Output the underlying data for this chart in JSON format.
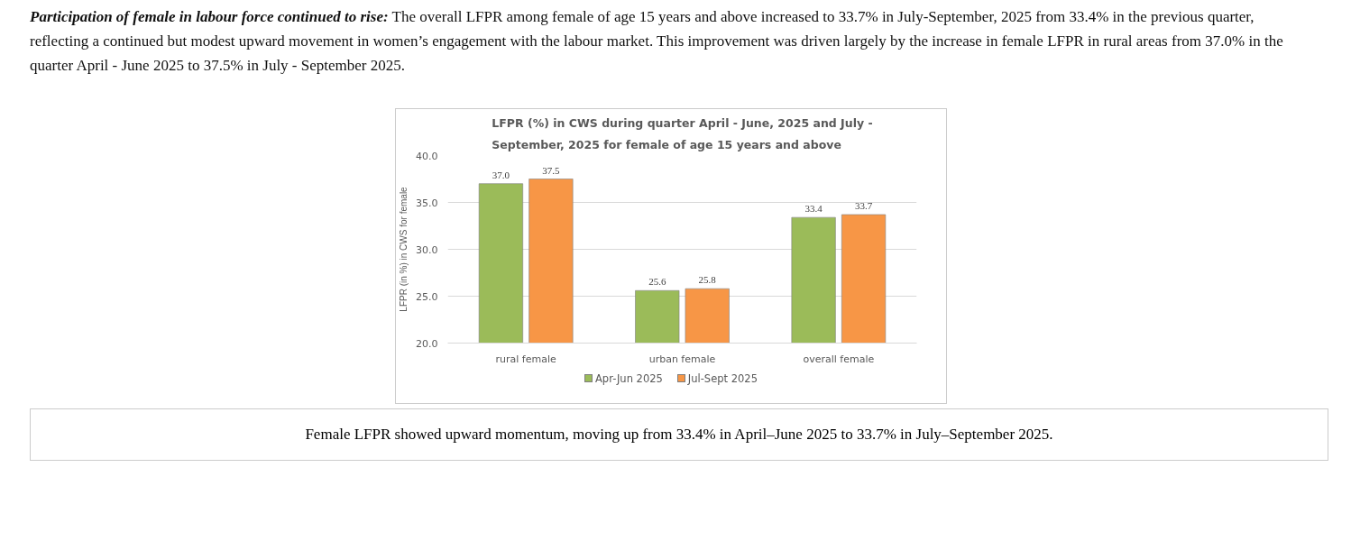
{
  "chart_data": {
    "type": "bar",
    "title": "LFPR (%) in CWS during quarter April - June, 2025 and July - September, 2025 for female of age 15 years and above",
    "ylabel": "LFPR (in %) in CWS for female",
    "categories": [
      "rural female",
      "urban female",
      "overall female"
    ],
    "series": [
      {
        "name": "Apr-Jun 2025",
        "color": "#9bbb59",
        "values": [
          37.0,
          25.6,
          33.4
        ],
        "value_labels": [
          "37.0",
          "25.6",
          "33.4"
        ]
      },
      {
        "name": "Jul-Sept 2025",
        "color": "#f79646",
        "values": [
          37.5,
          25.8,
          33.7
        ],
        "value_labels": [
          "37.5",
          "25.8",
          "33.7"
        ]
      }
    ],
    "ylim": [
      20,
      40
    ],
    "yticks": [
      {
        "value": 20,
        "label": "20.0"
      },
      {
        "value": 25,
        "label": "25.0"
      },
      {
        "value": 30,
        "label": "30.0"
      },
      {
        "value": 35,
        "label": "35.0"
      },
      {
        "value": 40,
        "label": "40.0"
      }
    ],
    "grid": "y",
    "legend": "bottom",
    "annotations": [
      "Participation of female in labour force continued to rise:",
      "The overall LFPR among female of age 15 years and above increased to 33.7% in July-September, 2025 from 33.4% in the previous quarter, reflecting a continued but modest upward movement in women’s engagement with the labour market. This improvement was driven largely by the increase in female LFPR in rural areas from 37.0% in the quarter April - June 2025 to 37.5% in July - September 2025.",
      "Female LFPR showed upward momentum, moving up from 33.4% in April–June 2025 to 33.7% in July–September 2025."
    ]
  }
}
